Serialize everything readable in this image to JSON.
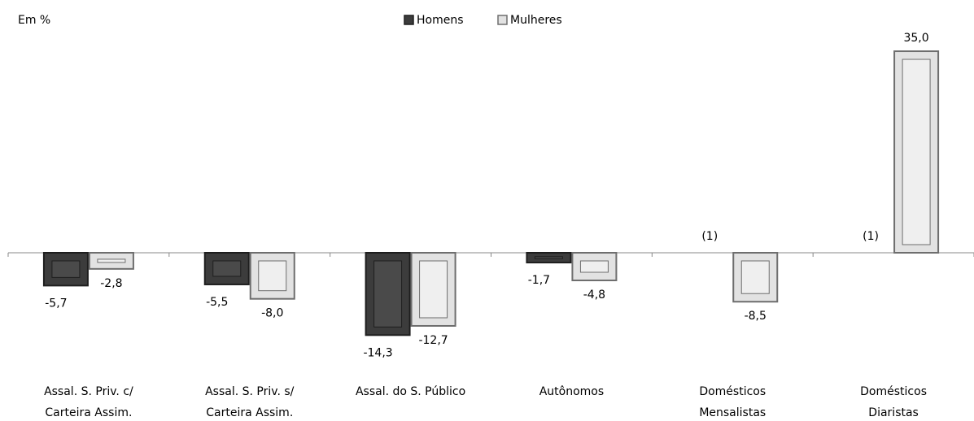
{
  "chart_data": {
    "type": "bar",
    "unit_label": "Em %",
    "categories": [
      [
        "Assal. S. Priv. c/",
        "Carteira Assim."
      ],
      [
        "Assal. S. Priv. s/",
        "Carteira Assim."
      ],
      [
        "Assal. do S. Público"
      ],
      [
        "Autônomos"
      ],
      [
        "Domésticos",
        "Mensalistas"
      ],
      [
        "Domésticos",
        "Diaristas"
      ]
    ],
    "series": [
      {
        "name": "Homens",
        "color": "#3c3c3c",
        "values": [
          -5.7,
          -5.5,
          -14.3,
          -1.7,
          null,
          null
        ],
        "value_labels": [
          "-5,7",
          "-5,5",
          "-14,3",
          "-1,7",
          "(1)",
          "(1)"
        ]
      },
      {
        "name": "Mulheres",
        "color": "#e2e2e2",
        "values": [
          -2.8,
          -8.0,
          -12.7,
          -4.8,
          -8.5,
          35.0
        ],
        "value_labels": [
          "-2,8",
          "-8,0",
          "-12,7",
          "-4,8",
          "-8,5",
          "35,0"
        ]
      }
    ],
    "ylim": [
      -20,
      40
    ],
    "legend": "top"
  }
}
